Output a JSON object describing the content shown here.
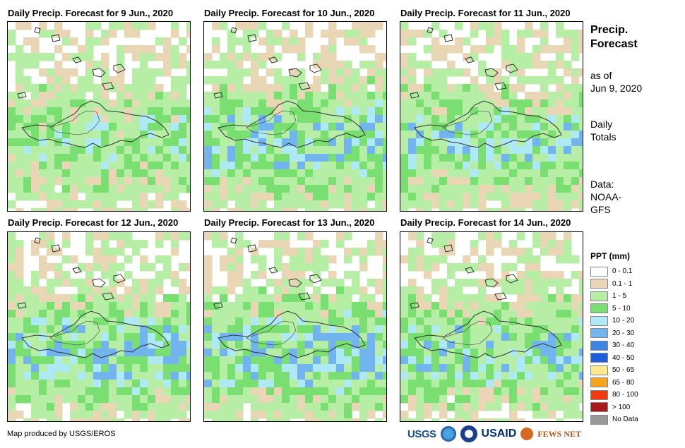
{
  "panels": [
    {
      "title": "Daily Precip. Forecast for 9 Jun., 2020",
      "seed": 9,
      "wet": 0.45
    },
    {
      "title": "Daily Precip. Forecast for 10 Jun., 2020",
      "seed": 10,
      "wet": 0.6
    },
    {
      "title": "Daily Precip. Forecast for 11 Jun., 2020",
      "seed": 11,
      "wet": 0.55
    },
    {
      "title": "Daily Precip. Forecast for 12 Jun., 2020",
      "seed": 12,
      "wet": 0.62
    },
    {
      "title": "Daily Precip. Forecast for 13 Jun., 2020",
      "seed": 13,
      "wet": 0.65
    },
    {
      "title": "Daily Precip. Forecast for 14 Jun., 2020",
      "seed": 14,
      "wet": 0.55
    }
  ],
  "side": {
    "title_line1": "Precip.",
    "title_line2": "Forecast",
    "asof_line1": "as of",
    "asof_line2": "Jun 9, 2020",
    "daily_line1": "Daily",
    "daily_line2": "Totals",
    "data_line1": "Data:",
    "data_line2": "NOAA-",
    "data_line3": "GFS"
  },
  "legend": {
    "title": "PPT (mm)",
    "items": [
      {
        "label": "0 - 0.1",
        "color": "#ffffff"
      },
      {
        "label": "0.1 - 1",
        "color": "#e8d6b4"
      },
      {
        "label": "1 - 5",
        "color": "#b6eea6"
      },
      {
        "label": "5 - 10",
        "color": "#78df70"
      },
      {
        "label": "10 - 20",
        "color": "#aeeaf6"
      },
      {
        "label": "20 - 30",
        "color": "#72b4ee"
      },
      {
        "label": "30 - 40",
        "color": "#3a86e2"
      },
      {
        "label": "40 - 50",
        "color": "#1a5edc"
      },
      {
        "label": "50 - 65",
        "color": "#fde88a"
      },
      {
        "label": "65 - 80",
        "color": "#f7a41c"
      },
      {
        "label": "80 - 100",
        "color": "#f23a10"
      },
      {
        "label": "> 100",
        "color": "#a8181c"
      },
      {
        "label": "No Data",
        "color": "#999999"
      }
    ]
  },
  "credit": "Map produced by USGS/EROS",
  "logos": {
    "usgs": "USGS",
    "usaid": "USAID",
    "fews": "FEWS NET"
  }
}
